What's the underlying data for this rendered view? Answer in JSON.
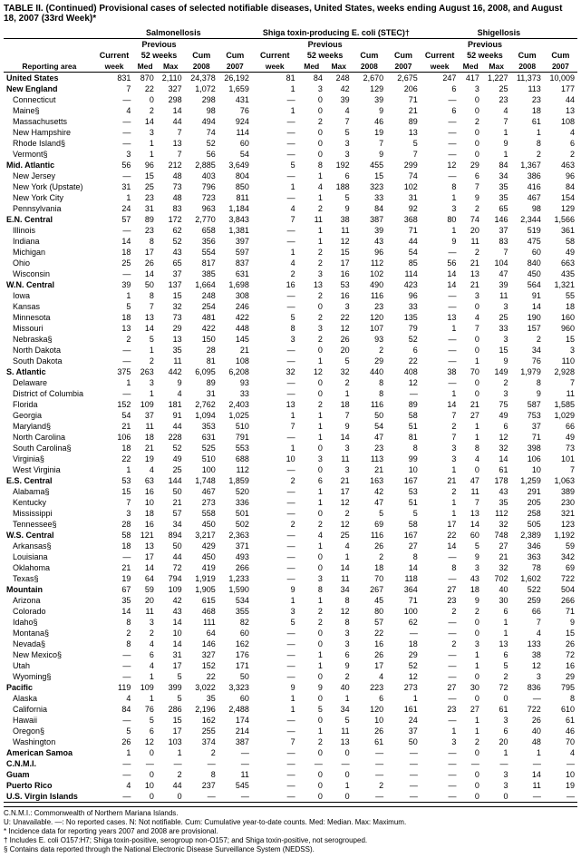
{
  "title": "TABLE II. (Continued) Provisional cases of selected notifiable diseases, United States, weeks ending August 16, 2008, and August 18, 2007 (33rd Week)*",
  "diseases": [
    "Salmonellosis",
    "Shiga toxin-producing E. coli (STEC)†",
    "Shigellosis"
  ],
  "subheaders": {
    "prev": "Previous",
    "weeks": "52 weeks"
  },
  "columns": [
    "Current week",
    "Med",
    "Max",
    "Cum 2008",
    "Cum 2007"
  ],
  "reporting_area_label": "Reporting area",
  "data": [
    {
      "area": "United States",
      "bold": true,
      "v": [
        "831",
        "870",
        "2,110",
        "24,378",
        "26,192",
        "81",
        "84",
        "248",
        "2,670",
        "2,675",
        "247",
        "417",
        "1,227",
        "11,373",
        "10,009"
      ]
    },
    {
      "area": "New England",
      "bold": true,
      "v": [
        "7",
        "22",
        "327",
        "1,072",
        "1,659",
        "1",
        "3",
        "42",
        "129",
        "206",
        "6",
        "3",
        "25",
        "113",
        "177"
      ]
    },
    {
      "area": "Connecticut",
      "v": [
        "—",
        "0",
        "298",
        "298",
        "431",
        "—",
        "0",
        "39",
        "39",
        "71",
        "—",
        "0",
        "23",
        "23",
        "44"
      ]
    },
    {
      "area": "Maine§",
      "v": [
        "4",
        "2",
        "14",
        "98",
        "76",
        "1",
        "0",
        "4",
        "9",
        "21",
        "6",
        "0",
        "4",
        "18",
        "13"
      ]
    },
    {
      "area": "Massachusetts",
      "v": [
        "—",
        "14",
        "44",
        "494",
        "924",
        "—",
        "2",
        "7",
        "46",
        "89",
        "—",
        "2",
        "7",
        "61",
        "108"
      ]
    },
    {
      "area": "New Hampshire",
      "v": [
        "—",
        "3",
        "7",
        "74",
        "114",
        "—",
        "0",
        "5",
        "19",
        "13",
        "—",
        "0",
        "1",
        "1",
        "4"
      ]
    },
    {
      "area": "Rhode Island§",
      "v": [
        "—",
        "1",
        "13",
        "52",
        "60",
        "—",
        "0",
        "3",
        "7",
        "5",
        "—",
        "0",
        "9",
        "8",
        "6"
      ]
    },
    {
      "area": "Vermont§",
      "v": [
        "3",
        "1",
        "7",
        "56",
        "54",
        "—",
        "0",
        "3",
        "9",
        "7",
        "—",
        "0",
        "1",
        "2",
        "2"
      ]
    },
    {
      "area": "Mid. Atlantic",
      "bold": true,
      "v": [
        "56",
        "96",
        "212",
        "2,885",
        "3,649",
        "5",
        "8",
        "192",
        "455",
        "299",
        "12",
        "29",
        "84",
        "1,367",
        "463"
      ]
    },
    {
      "area": "New Jersey",
      "v": [
        "—",
        "15",
        "48",
        "403",
        "804",
        "—",
        "1",
        "6",
        "15",
        "74",
        "—",
        "6",
        "34",
        "386",
        "96"
      ]
    },
    {
      "area": "New York (Upstate)",
      "v": [
        "31",
        "25",
        "73",
        "796",
        "850",
        "1",
        "4",
        "188",
        "323",
        "102",
        "8",
        "7",
        "35",
        "416",
        "84"
      ]
    },
    {
      "area": "New York City",
      "v": [
        "1",
        "23",
        "48",
        "723",
        "811",
        "—",
        "1",
        "5",
        "33",
        "31",
        "1",
        "9",
        "35",
        "467",
        "154"
      ]
    },
    {
      "area": "Pennsylvania",
      "v": [
        "24",
        "31",
        "83",
        "963",
        "1,184",
        "4",
        "2",
        "9",
        "84",
        "92",
        "3",
        "2",
        "65",
        "98",
        "129"
      ]
    },
    {
      "area": "E.N. Central",
      "bold": true,
      "v": [
        "57",
        "89",
        "172",
        "2,770",
        "3,843",
        "7",
        "11",
        "38",
        "387",
        "368",
        "80",
        "74",
        "146",
        "2,344",
        "1,566"
      ]
    },
    {
      "area": "Illinois",
      "v": [
        "—",
        "23",
        "62",
        "658",
        "1,381",
        "—",
        "1",
        "11",
        "39",
        "71",
        "1",
        "20",
        "37",
        "519",
        "361"
      ]
    },
    {
      "area": "Indiana",
      "v": [
        "14",
        "8",
        "52",
        "356",
        "397",
        "—",
        "1",
        "12",
        "43",
        "44",
        "9",
        "11",
        "83",
        "475",
        "58"
      ]
    },
    {
      "area": "Michigan",
      "v": [
        "18",
        "17",
        "43",
        "554",
        "597",
        "1",
        "2",
        "15",
        "96",
        "54",
        "—",
        "2",
        "7",
        "60",
        "49"
      ]
    },
    {
      "area": "Ohio",
      "v": [
        "25",
        "26",
        "65",
        "817",
        "837",
        "4",
        "2",
        "17",
        "112",
        "85",
        "56",
        "21",
        "104",
        "840",
        "663"
      ]
    },
    {
      "area": "Wisconsin",
      "v": [
        "—",
        "14",
        "37",
        "385",
        "631",
        "2",
        "3",
        "16",
        "102",
        "114",
        "14",
        "13",
        "47",
        "450",
        "435"
      ]
    },
    {
      "area": "W.N. Central",
      "bold": true,
      "v": [
        "39",
        "50",
        "137",
        "1,664",
        "1,698",
        "16",
        "13",
        "53",
        "490",
        "423",
        "14",
        "21",
        "39",
        "564",
        "1,321"
      ]
    },
    {
      "area": "Iowa",
      "v": [
        "1",
        "8",
        "15",
        "248",
        "308",
        "—",
        "2",
        "16",
        "116",
        "96",
        "—",
        "3",
        "11",
        "91",
        "55"
      ]
    },
    {
      "area": "Kansas",
      "v": [
        "5",
        "7",
        "32",
        "254",
        "246",
        "—",
        "0",
        "3",
        "23",
        "33",
        "—",
        "0",
        "3",
        "14",
        "18"
      ]
    },
    {
      "area": "Minnesota",
      "v": [
        "18",
        "13",
        "73",
        "481",
        "422",
        "5",
        "2",
        "22",
        "120",
        "135",
        "13",
        "4",
        "25",
        "190",
        "160"
      ]
    },
    {
      "area": "Missouri",
      "v": [
        "13",
        "14",
        "29",
        "422",
        "448",
        "8",
        "3",
        "12",
        "107",
        "79",
        "1",
        "7",
        "33",
        "157",
        "960"
      ]
    },
    {
      "area": "Nebraska§",
      "v": [
        "2",
        "5",
        "13",
        "150",
        "145",
        "3",
        "2",
        "26",
        "93",
        "52",
        "—",
        "0",
        "3",
        "2",
        "15"
      ]
    },
    {
      "area": "North Dakota",
      "v": [
        "—",
        "1",
        "35",
        "28",
        "21",
        "—",
        "0",
        "20",
        "2",
        "6",
        "—",
        "0",
        "15",
        "34",
        "3"
      ]
    },
    {
      "area": "South Dakota",
      "v": [
        "—",
        "2",
        "11",
        "81",
        "108",
        "—",
        "1",
        "5",
        "29",
        "22",
        "—",
        "1",
        "9",
        "76",
        "110"
      ]
    },
    {
      "area": "S. Atlantic",
      "bold": true,
      "v": [
        "375",
        "263",
        "442",
        "6,095",
        "6,208",
        "32",
        "12",
        "32",
        "440",
        "408",
        "38",
        "70",
        "149",
        "1,979",
        "2,928"
      ]
    },
    {
      "area": "Delaware",
      "v": [
        "1",
        "3",
        "9",
        "89",
        "93",
        "—",
        "0",
        "2",
        "8",
        "12",
        "—",
        "0",
        "2",
        "8",
        "7"
      ]
    },
    {
      "area": "District of Columbia",
      "v": [
        "—",
        "1",
        "4",
        "31",
        "33",
        "—",
        "0",
        "1",
        "8",
        "—",
        "1",
        "0",
        "3",
        "9",
        "11"
      ]
    },
    {
      "area": "Florida",
      "v": [
        "152",
        "109",
        "181",
        "2,762",
        "2,403",
        "13",
        "2",
        "18",
        "116",
        "89",
        "14",
        "21",
        "75",
        "587",
        "1,585"
      ]
    },
    {
      "area": "Georgia",
      "v": [
        "54",
        "37",
        "91",
        "1,094",
        "1,025",
        "1",
        "1",
        "7",
        "50",
        "58",
        "7",
        "27",
        "49",
        "753",
        "1,029"
      ]
    },
    {
      "area": "Maryland§",
      "v": [
        "21",
        "11",
        "44",
        "353",
        "510",
        "7",
        "1",
        "9",
        "54",
        "51",
        "2",
        "1",
        "6",
        "37",
        "66"
      ]
    },
    {
      "area": "North Carolina",
      "v": [
        "106",
        "18",
        "228",
        "631",
        "791",
        "—",
        "1",
        "14",
        "47",
        "81",
        "7",
        "1",
        "12",
        "71",
        "49"
      ]
    },
    {
      "area": "South Carolina§",
      "v": [
        "18",
        "21",
        "52",
        "525",
        "553",
        "1",
        "0",
        "3",
        "23",
        "8",
        "3",
        "8",
        "32",
        "398",
        "73"
      ]
    },
    {
      "area": "Virginia§",
      "v": [
        "22",
        "19",
        "49",
        "510",
        "688",
        "10",
        "3",
        "11",
        "113",
        "99",
        "3",
        "4",
        "14",
        "106",
        "101"
      ]
    },
    {
      "area": "West Virginia",
      "v": [
        "1",
        "4",
        "25",
        "100",
        "112",
        "—",
        "0",
        "3",
        "21",
        "10",
        "1",
        "0",
        "61",
        "10",
        "7"
      ]
    },
    {
      "area": "E.S. Central",
      "bold": true,
      "v": [
        "53",
        "63",
        "144",
        "1,748",
        "1,859",
        "2",
        "6",
        "21",
        "163",
        "167",
        "21",
        "47",
        "178",
        "1,259",
        "1,063"
      ]
    },
    {
      "area": "Alabama§",
      "v": [
        "15",
        "16",
        "50",
        "467",
        "520",
        "—",
        "1",
        "17",
        "42",
        "53",
        "2",
        "11",
        "43",
        "291",
        "389"
      ]
    },
    {
      "area": "Kentucky",
      "v": [
        "7",
        "10",
        "21",
        "273",
        "336",
        "—",
        "1",
        "12",
        "47",
        "51",
        "1",
        "7",
        "35",
        "205",
        "230"
      ]
    },
    {
      "area": "Mississippi",
      "v": [
        "3",
        "18",
        "57",
        "558",
        "501",
        "—",
        "0",
        "2",
        "5",
        "5",
        "1",
        "13",
        "112",
        "258",
        "321"
      ]
    },
    {
      "area": "Tennessee§",
      "v": [
        "28",
        "16",
        "34",
        "450",
        "502",
        "2",
        "2",
        "12",
        "69",
        "58",
        "17",
        "14",
        "32",
        "505",
        "123"
      ]
    },
    {
      "area": "W.S. Central",
      "bold": true,
      "v": [
        "58",
        "121",
        "894",
        "3,217",
        "2,363",
        "—",
        "4",
        "25",
        "116",
        "167",
        "22",
        "60",
        "748",
        "2,389",
        "1,192"
      ]
    },
    {
      "area": "Arkansas§",
      "v": [
        "18",
        "13",
        "50",
        "429",
        "371",
        "—",
        "1",
        "4",
        "26",
        "27",
        "14",
        "5",
        "27",
        "346",
        "59"
      ]
    },
    {
      "area": "Louisiana",
      "v": [
        "—",
        "17",
        "44",
        "450",
        "493",
        "—",
        "0",
        "1",
        "2",
        "8",
        "—",
        "9",
        "21",
        "363",
        "342"
      ]
    },
    {
      "area": "Oklahoma",
      "v": [
        "21",
        "14",
        "72",
        "419",
        "266",
        "—",
        "0",
        "14",
        "18",
        "14",
        "8",
        "3",
        "32",
        "78",
        "69"
      ]
    },
    {
      "area": "Texas§",
      "v": [
        "19",
        "64",
        "794",
        "1,919",
        "1,233",
        "—",
        "3",
        "11",
        "70",
        "118",
        "—",
        "43",
        "702",
        "1,602",
        "722"
      ]
    },
    {
      "area": "Mountain",
      "bold": true,
      "v": [
        "67",
        "59",
        "109",
        "1,905",
        "1,590",
        "9",
        "8",
        "34",
        "267",
        "364",
        "27",
        "18",
        "40",
        "522",
        "504"
      ]
    },
    {
      "area": "Arizona",
      "v": [
        "35",
        "20",
        "42",
        "615",
        "534",
        "1",
        "1",
        "8",
        "45",
        "71",
        "23",
        "9",
        "30",
        "259",
        "266"
      ]
    },
    {
      "area": "Colorado",
      "v": [
        "14",
        "11",
        "43",
        "468",
        "355",
        "3",
        "2",
        "12",
        "80",
        "100",
        "2",
        "2",
        "6",
        "66",
        "71"
      ]
    },
    {
      "area": "Idaho§",
      "v": [
        "8",
        "3",
        "14",
        "111",
        "82",
        "5",
        "2",
        "8",
        "57",
        "62",
        "—",
        "0",
        "1",
        "7",
        "9"
      ]
    },
    {
      "area": "Montana§",
      "v": [
        "2",
        "2",
        "10",
        "64",
        "60",
        "—",
        "0",
        "3",
        "22",
        "—",
        "—",
        "0",
        "1",
        "4",
        "15"
      ]
    },
    {
      "area": "Nevada§",
      "v": [
        "8",
        "4",
        "14",
        "146",
        "162",
        "—",
        "0",
        "3",
        "16",
        "18",
        "2",
        "3",
        "13",
        "133",
        "26"
      ]
    },
    {
      "area": "New Mexico§",
      "v": [
        "—",
        "6",
        "31",
        "327",
        "176",
        "—",
        "1",
        "6",
        "26",
        "29",
        "—",
        "1",
        "6",
        "38",
        "72"
      ]
    },
    {
      "area": "Utah",
      "v": [
        "—",
        "4",
        "17",
        "152",
        "171",
        "—",
        "1",
        "9",
        "17",
        "52",
        "—",
        "1",
        "5",
        "12",
        "16"
      ]
    },
    {
      "area": "Wyoming§",
      "v": [
        "—",
        "1",
        "5",
        "22",
        "50",
        "—",
        "0",
        "2",
        "4",
        "12",
        "—",
        "0",
        "2",
        "3",
        "29"
      ]
    },
    {
      "area": "Pacific",
      "bold": true,
      "v": [
        "119",
        "109",
        "399",
        "3,022",
        "3,323",
        "9",
        "9",
        "40",
        "223",
        "273",
        "27",
        "30",
        "72",
        "836",
        "795"
      ]
    },
    {
      "area": "Alaska",
      "v": [
        "4",
        "1",
        "5",
        "35",
        "60",
        "1",
        "0",
        "1",
        "6",
        "1",
        "—",
        "0",
        "0",
        "—",
        "8"
      ]
    },
    {
      "area": "California",
      "v": [
        "84",
        "76",
        "286",
        "2,196",
        "2,488",
        "1",
        "5",
        "34",
        "120",
        "161",
        "23",
        "27",
        "61",
        "722",
        "610"
      ]
    },
    {
      "area": "Hawaii",
      "v": [
        "—",
        "5",
        "15",
        "162",
        "174",
        "—",
        "0",
        "5",
        "10",
        "24",
        "—",
        "1",
        "3",
        "26",
        "61"
      ]
    },
    {
      "area": "Oregon§",
      "v": [
        "5",
        "6",
        "17",
        "255",
        "214",
        "—",
        "1",
        "11",
        "26",
        "37",
        "1",
        "1",
        "6",
        "40",
        "46"
      ]
    },
    {
      "area": "Washington",
      "v": [
        "26",
        "12",
        "103",
        "374",
        "387",
        "7",
        "2",
        "13",
        "61",
        "50",
        "3",
        "2",
        "20",
        "48",
        "70"
      ]
    },
    {
      "area": "American Samoa",
      "bold": true,
      "v": [
        "1",
        "0",
        "1",
        "2",
        "—",
        "—",
        "0",
        "0",
        "—",
        "—",
        "—",
        "0",
        "1",
        "1",
        "4"
      ]
    },
    {
      "area": "C.N.M.I.",
      "bold": true,
      "v": [
        "—",
        "—",
        "—",
        "—",
        "—",
        "—",
        "—",
        "—",
        "—",
        "—",
        "—",
        "—",
        "—",
        "—",
        "—"
      ]
    },
    {
      "area": "Guam",
      "bold": true,
      "v": [
        "—",
        "0",
        "2",
        "8",
        "11",
        "—",
        "0",
        "0",
        "—",
        "—",
        "—",
        "0",
        "3",
        "14",
        "10"
      ]
    },
    {
      "area": "Puerto Rico",
      "bold": true,
      "v": [
        "4",
        "10",
        "44",
        "237",
        "545",
        "—",
        "0",
        "1",
        "2",
        "—",
        "—",
        "0",
        "3",
        "11",
        "19"
      ]
    },
    {
      "area": "U.S. Virgin Islands",
      "bold": true,
      "bottom": true,
      "v": [
        "—",
        "0",
        "0",
        "—",
        "—",
        "—",
        "0",
        "0",
        "—",
        "—",
        "—",
        "0",
        "0",
        "—",
        "—"
      ]
    }
  ],
  "footnotes": [
    "C.N.M.I.: Commonwealth of Northern Mariana Islands.",
    "U: Unavailable.   —: No reported cases.   N: Not notifiable.   Cum: Cumulative year-to-date counts.   Med: Median.   Max: Maximum.",
    "* Incidence data for reporting years 2007 and 2008 are provisional.",
    "† Includes E. coli O157:H7; Shiga toxin-positive, serogroup non-O157; and Shiga toxin-positive, not serogrouped.",
    "§ Contains data reported through the National Electronic Disease Surveillance System (NEDSS)."
  ]
}
